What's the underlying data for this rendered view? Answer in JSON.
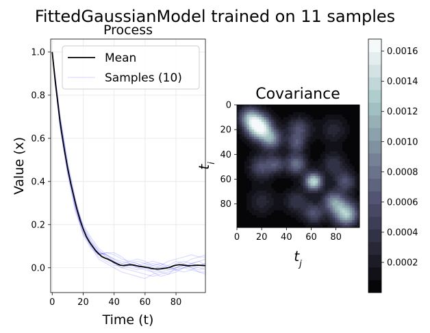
{
  "figure": {
    "title": "FittedGaussianModel trained on 11 samples"
  },
  "chart_data": [
    {
      "type": "line",
      "title": "Process",
      "xlabel": "Time (t)",
      "ylabel": "Value (x)",
      "xlim": [
        -1,
        99
      ],
      "ylim": [
        -0.115,
        1.06
      ],
      "xticks": [
        0,
        20,
        40,
        60,
        80
      ],
      "yticks": [
        0.0,
        0.2,
        0.4,
        0.6,
        0.8,
        1.0
      ],
      "xtick_labels": [
        "0",
        "20",
        "40",
        "60",
        "80"
      ],
      "ytick_labels": [
        "0.0",
        "0.2",
        "0.4",
        "0.6",
        "0.8",
        "1.0"
      ],
      "grid": true,
      "legend": {
        "placement": "top-right",
        "entries": [
          "Mean",
          "Samples (10)"
        ]
      },
      "colors": {
        "mean": "#000000",
        "samples": "#0000ff"
      },
      "mean": {
        "name": "Mean",
        "x": [
          0,
          1,
          2,
          3,
          4,
          5,
          6,
          8,
          10,
          12,
          14,
          16,
          18,
          20,
          22,
          24,
          26,
          28,
          30,
          32,
          34,
          36,
          38,
          40,
          42,
          44,
          46,
          48,
          50,
          52,
          54,
          56,
          58,
          60,
          62,
          64,
          66,
          68,
          70,
          72,
          74,
          76,
          78,
          80,
          82,
          84,
          86,
          88,
          90,
          92,
          94,
          96,
          98,
          99
        ],
        "y": [
          1.0,
          0.93,
          0.86,
          0.8,
          0.74,
          0.68,
          0.63,
          0.54,
          0.46,
          0.39,
          0.33,
          0.27,
          0.22,
          0.18,
          0.145,
          0.12,
          0.1,
          0.08,
          0.065,
          0.052,
          0.045,
          0.04,
          0.033,
          0.025,
          0.018,
          0.012,
          0.01,
          0.012,
          0.014,
          0.013,
          0.01,
          0.007,
          0.005,
          0.003,
          0.001,
          -0.003,
          -0.005,
          -0.006,
          -0.005,
          -0.003,
          -0.001,
          0.002,
          0.008,
          0.012,
          0.014,
          0.013,
          0.011,
          0.009,
          0.01,
          0.011,
          0.012,
          0.011,
          0.01,
          0.01
        ]
      },
      "samples": {
        "name": "Samples (10)",
        "x": [
          0,
          5,
          10,
          15,
          20,
          25,
          30,
          35,
          40,
          45,
          50,
          55,
          60,
          65,
          70,
          75,
          80,
          85,
          90,
          95,
          99
        ],
        "series": [
          [
            1.0,
            0.68,
            0.45,
            0.28,
            0.17,
            0.11,
            0.07,
            0.06,
            0.04,
            0.02,
            0.01,
            0.0,
            -0.01,
            -0.02,
            -0.01,
            0.0,
            0.02,
            0.03,
            0.02,
            0.01,
            0.02
          ],
          [
            1.0,
            0.7,
            0.48,
            0.31,
            0.19,
            0.13,
            0.08,
            0.05,
            0.02,
            0.0,
            -0.01,
            -0.02,
            -0.03,
            -0.04,
            -0.03,
            -0.02,
            -0.01,
            0.0,
            -0.01,
            -0.02,
            -0.03
          ],
          [
            1.0,
            0.66,
            0.44,
            0.27,
            0.16,
            0.1,
            0.06,
            0.07,
            0.06,
            0.04,
            0.03,
            0.02,
            0.0,
            -0.01,
            0.01,
            0.03,
            0.04,
            0.05,
            0.06,
            0.05,
            0.06
          ],
          [
            1.0,
            0.69,
            0.47,
            0.3,
            0.18,
            0.11,
            0.05,
            0.03,
            0.01,
            0.01,
            0.02,
            0.03,
            0.02,
            0.0,
            -0.02,
            -0.03,
            -0.02,
            0.0,
            0.01,
            0.0,
            -0.01
          ],
          [
            1.0,
            0.67,
            0.46,
            0.29,
            0.2,
            0.14,
            0.09,
            0.06,
            0.03,
            0.02,
            0.03,
            0.04,
            0.03,
            0.01,
            0.0,
            0.01,
            0.03,
            0.02,
            0.0,
            -0.01,
            0.0
          ],
          [
            1.0,
            0.71,
            0.49,
            0.32,
            0.18,
            0.1,
            0.04,
            0.02,
            0.0,
            -0.02,
            -0.03,
            -0.04,
            -0.05,
            -0.03,
            -0.02,
            -0.01,
            0.0,
            0.01,
            0.02,
            0.03,
            0.04
          ],
          [
            1.0,
            0.68,
            0.46,
            0.28,
            0.15,
            0.09,
            0.06,
            0.07,
            0.07,
            0.05,
            0.02,
            0.0,
            0.01,
            0.02,
            0.01,
            -0.01,
            0.0,
            0.02,
            0.04,
            0.05,
            0.05
          ],
          [
            1.0,
            0.65,
            0.43,
            0.26,
            0.16,
            0.1,
            0.07,
            0.04,
            0.02,
            0.0,
            0.01,
            0.02,
            0.0,
            -0.02,
            -0.04,
            -0.03,
            0.0,
            0.01,
            0.0,
            -0.02,
            -0.02
          ],
          [
            1.0,
            0.7,
            0.47,
            0.3,
            0.19,
            0.12,
            0.08,
            0.05,
            0.03,
            0.01,
            0.0,
            -0.01,
            0.0,
            0.01,
            0.02,
            0.01,
            -0.01,
            -0.02,
            -0.01,
            0.01,
            0.02
          ],
          [
            1.0,
            0.69,
            0.45,
            0.29,
            0.18,
            0.12,
            0.07,
            0.06,
            0.04,
            0.03,
            0.02,
            0.01,
            0.02,
            0.03,
            0.02,
            0.0,
            -0.01,
            0.0,
            0.02,
            0.03,
            0.01
          ]
        ]
      }
    },
    {
      "type": "heatmap",
      "title": "Covariance",
      "xlabel": "t_j",
      "ylabel": "t_i",
      "extent": [
        0,
        99
      ],
      "xticks": [
        0,
        20,
        40,
        60,
        80
      ],
      "yticks": [
        0,
        20,
        40,
        60,
        80
      ],
      "xtick_labels": [
        "0",
        "20",
        "40",
        "60",
        "80"
      ],
      "ytick_labels": [
        "0",
        "20",
        "40",
        "60",
        "80"
      ],
      "colormap": "bone",
      "levels": 20,
      "vmin": 0.0,
      "vmax": 0.00168,
      "blobs": [
        {
          "i": 18,
          "j": 18,
          "value": 0.00165,
          "width": 7
        },
        {
          "i": 10,
          "j": 10,
          "value": 0.0009,
          "width": 6
        },
        {
          "i": 28,
          "j": 28,
          "value": 0.0009,
          "width": 6
        },
        {
          "i": 48,
          "j": 48,
          "value": 0.0008,
          "width": 6
        },
        {
          "i": 62,
          "j": 62,
          "value": 0.0014,
          "width": 5
        },
        {
          "i": 88,
          "j": 88,
          "value": 0.0013,
          "width": 7
        },
        {
          "i": 78,
          "j": 78,
          "value": 0.0009,
          "width": 6
        },
        {
          "i": 50,
          "j": 20,
          "value": 0.0006,
          "width": 7
        },
        {
          "i": 20,
          "j": 50,
          "value": 0.0006,
          "width": 7
        },
        {
          "i": 48,
          "j": 32,
          "value": 0.0005,
          "width": 5
        },
        {
          "i": 32,
          "j": 48,
          "value": 0.0005,
          "width": 5
        },
        {
          "i": 78,
          "j": 48,
          "value": 0.0004,
          "width": 7
        },
        {
          "i": 48,
          "j": 78,
          "value": 0.0004,
          "width": 7
        },
        {
          "i": 78,
          "j": 20,
          "value": 0.0003,
          "width": 8
        },
        {
          "i": 20,
          "j": 78,
          "value": 0.0003,
          "width": 8
        },
        {
          "i": 88,
          "j": 62,
          "value": 0.0006,
          "width": 6
        },
        {
          "i": 62,
          "j": 88,
          "value": 0.0006,
          "width": 6
        }
      ],
      "colorbar": {
        "ticks": [
          0.0002,
          0.0004,
          0.0006,
          0.0008,
          0.001,
          0.0012,
          0.0014,
          0.0016
        ],
        "tick_labels": [
          "0.0002",
          "0.0004",
          "0.0006",
          "0.0008",
          "0.0010",
          "0.0012",
          "0.0014",
          "0.0016"
        ]
      }
    }
  ]
}
